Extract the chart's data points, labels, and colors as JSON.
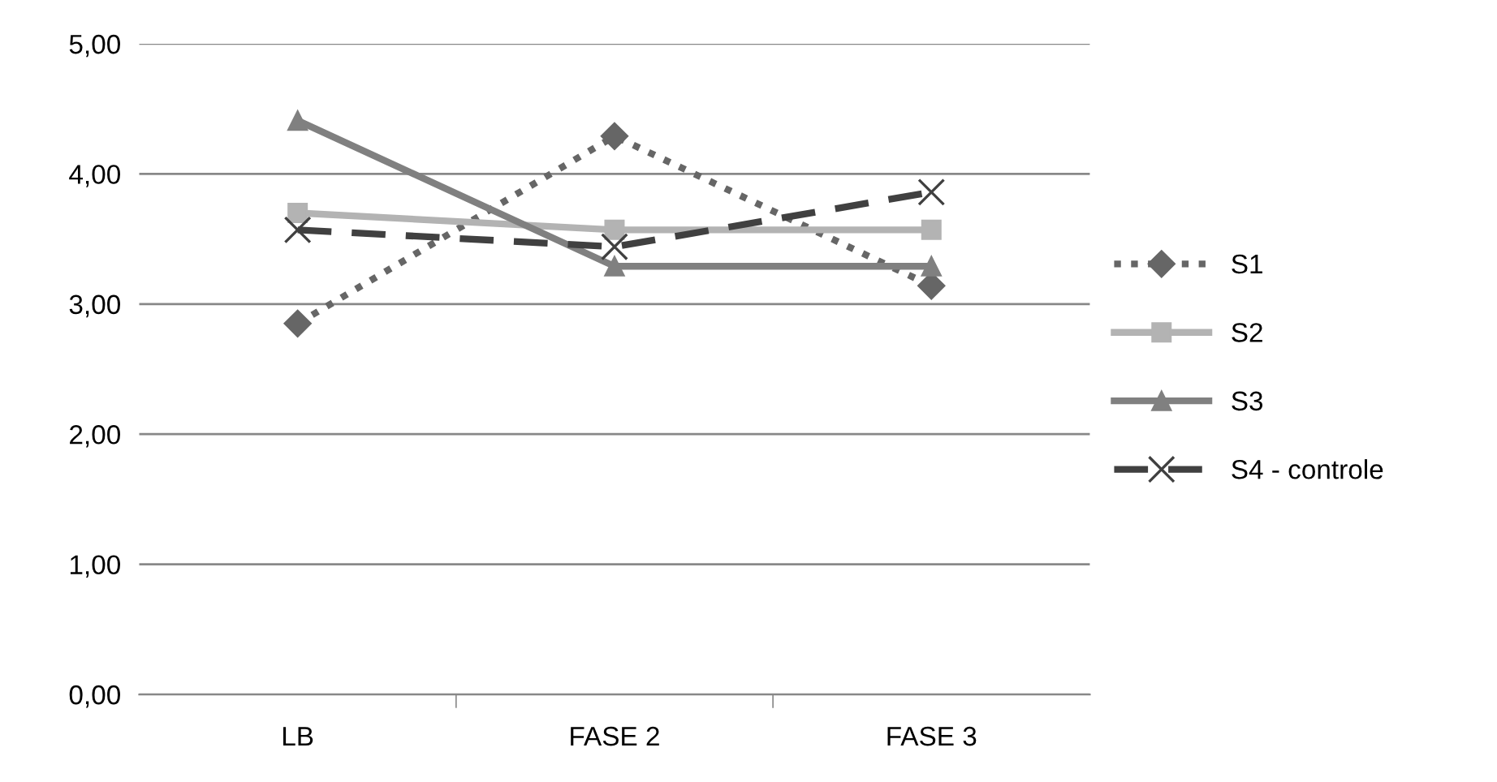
{
  "chart_data": {
    "type": "line",
    "categories": [
      "LB",
      "FASE 2",
      "FASE 3"
    ],
    "series": [
      {
        "name": "S1",
        "color": "#666666",
        "marker": "diamond",
        "line_style": "dotted",
        "values": [
          2.85,
          4.29,
          3.14
        ]
      },
      {
        "name": "S2",
        "color": "#b3b3b3",
        "marker": "square",
        "line_style": "solid",
        "values": [
          3.7,
          3.57,
          3.57
        ]
      },
      {
        "name": "S3",
        "color": "#808080",
        "marker": "triangle",
        "line_style": "solid",
        "values": [
          4.41,
          3.29,
          3.29
        ]
      },
      {
        "name": "S4 - controle",
        "color": "#404040",
        "marker": "cross",
        "line_style": "dashed",
        "values": [
          3.57,
          3.44,
          3.86
        ]
      }
    ],
    "ylim": [
      0,
      5
    ],
    "yticks": [
      {
        "value": 0,
        "label": "0,00"
      },
      {
        "value": 1,
        "label": "1,00"
      },
      {
        "value": 2,
        "label": "2,00"
      },
      {
        "value": 3,
        "label": "3,00"
      },
      {
        "value": 4,
        "label": "4,00"
      },
      {
        "value": 5,
        "label": "5,00"
      }
    ],
    "grid": "y",
    "legend": "right"
  }
}
